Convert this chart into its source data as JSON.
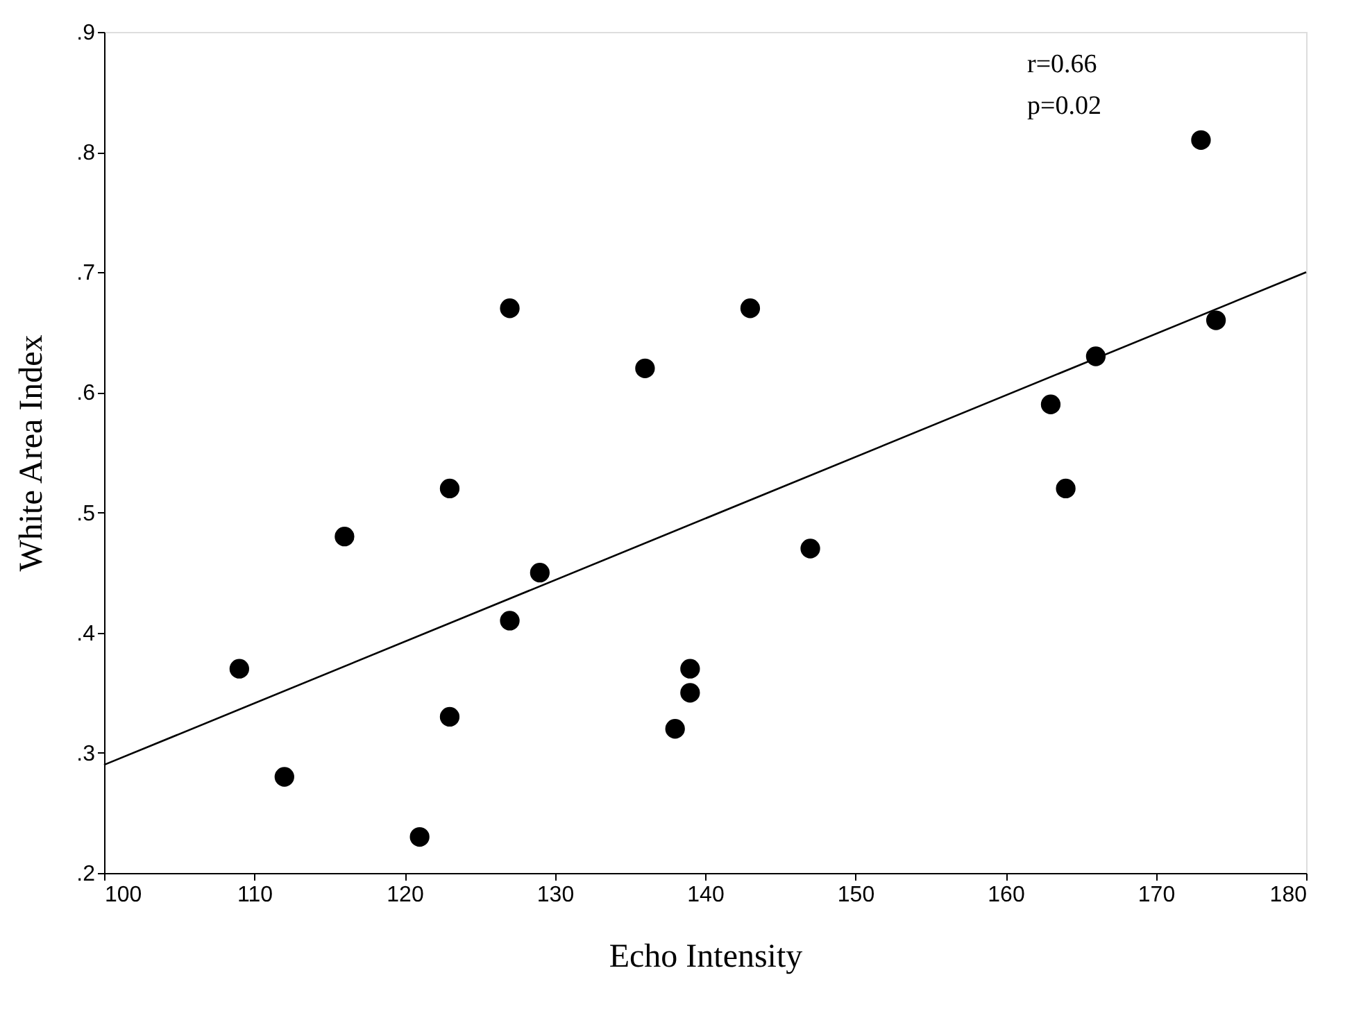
{
  "chart_data": {
    "type": "scatter",
    "xlabel": "Echo Intensity",
    "ylabel": "White Area Index",
    "xlim": [
      100,
      180
    ],
    "xticks": [
      100,
      110,
      120,
      130,
      140,
      150,
      160,
      170,
      180
    ],
    "ylim": [
      0.2,
      0.9
    ],
    "yticks": [
      {
        "value": 0.2,
        "label": ".2"
      },
      {
        "value": 0.3,
        "label": ".3"
      },
      {
        "value": 0.4,
        "label": ".4"
      },
      {
        "value": 0.5,
        "label": ".5"
      },
      {
        "value": 0.6,
        "label": ".6"
      },
      {
        "value": 0.7,
        "label": ".7"
      },
      {
        "value": 0.8,
        "label": ".8"
      },
      {
        "value": 0.9,
        "label": ".9"
      }
    ],
    "grid": false,
    "annotations": [
      "r=0.66",
      "p=0.02"
    ],
    "series": [
      {
        "marker": "circle",
        "color": "#000000",
        "x": [
          109,
          112,
          116,
          121,
          123,
          123,
          127,
          127,
          129,
          136,
          138,
          139,
          139,
          143,
          147,
          163,
          164,
          166,
          173,
          174
        ],
        "values": [
          0.37,
          0.28,
          0.48,
          0.23,
          0.52,
          0.33,
          0.67,
          0.41,
          0.45,
          0.62,
          0.32,
          0.37,
          0.35,
          0.67,
          0.47,
          0.59,
          0.52,
          0.63,
          0.81,
          0.66
        ]
      },
      {
        "type": "line",
        "marker": "none",
        "line_style": "solid",
        "color": "#000000",
        "x": [
          100,
          180
        ],
        "values": [
          0.29,
          0.7
        ]
      }
    ]
  }
}
